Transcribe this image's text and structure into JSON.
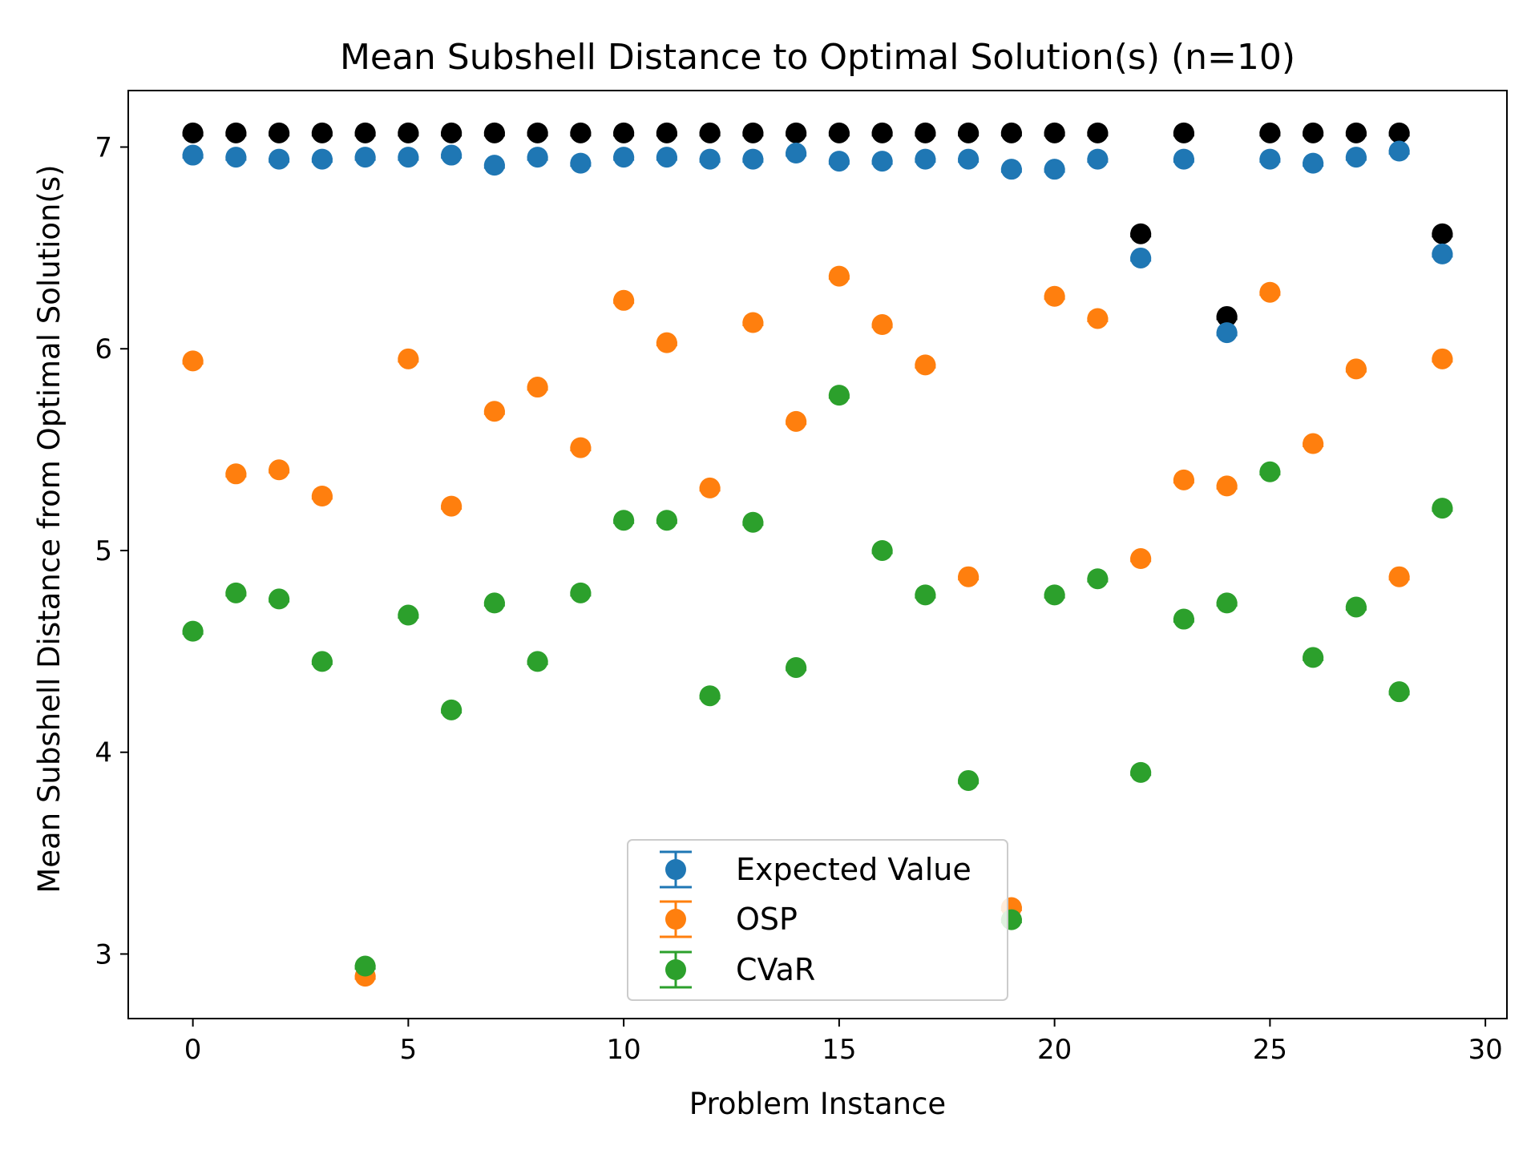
{
  "chart_data": {
    "type": "scatter",
    "title": "Mean Subshell Distance to Optimal Solution(s) (n=10)",
    "xlabel": "Problem Instance",
    "ylabel": "Mean Subshell Distance from Optimal Solution(s)",
    "xlim": [
      -1.5,
      30.5
    ],
    "ylim": [
      2.68,
      7.28
    ],
    "x_ticks": [
      0,
      5,
      10,
      15,
      20,
      25,
      30
    ],
    "y_ticks": [
      3,
      4,
      5,
      6,
      7
    ],
    "grid": false,
    "legend_position": "lower center",
    "x": [
      0,
      1,
      2,
      3,
      4,
      5,
      6,
      7,
      8,
      9,
      10,
      11,
      12,
      13,
      14,
      15,
      16,
      17,
      18,
      19,
      20,
      21,
      22,
      23,
      24,
      25,
      26,
      27,
      28,
      29
    ],
    "reference": {
      "color": "#000000",
      "values": [
        7.07,
        7.07,
        7.07,
        7.07,
        7.07,
        7.07,
        7.07,
        7.07,
        7.07,
        7.07,
        7.07,
        7.07,
        7.07,
        7.07,
        7.07,
        7.07,
        7.07,
        7.07,
        7.07,
        7.07,
        7.07,
        7.07,
        6.57,
        7.07,
        6.16,
        7.07,
        7.07,
        7.07,
        7.07,
        6.57
      ]
    },
    "series": [
      {
        "name": "Expected Value",
        "color": "#1f77b4",
        "values": [
          6.96,
          6.95,
          6.94,
          6.94,
          6.95,
          6.95,
          6.96,
          6.91,
          6.95,
          6.92,
          6.95,
          6.95,
          6.94,
          6.94,
          6.97,
          6.93,
          6.93,
          6.94,
          6.94,
          6.89,
          6.89,
          6.94,
          6.45,
          6.94,
          6.08,
          6.94,
          6.92,
          6.95,
          6.98,
          6.47
        ]
      },
      {
        "name": "OSP",
        "color": "#ff7f0e",
        "values": [
          5.94,
          5.38,
          5.4,
          5.27,
          2.89,
          5.95,
          5.22,
          5.69,
          5.81,
          5.51,
          6.24,
          6.03,
          5.31,
          6.13,
          5.64,
          6.36,
          6.12,
          5.92,
          4.87,
          3.23,
          6.26,
          6.15,
          4.96,
          5.35,
          5.32,
          6.28,
          5.53,
          5.9,
          4.87,
          5.95
        ]
      },
      {
        "name": "CVaR",
        "color": "#2ca02c",
        "values": [
          4.6,
          4.79,
          4.76,
          4.45,
          2.94,
          4.68,
          4.21,
          4.74,
          4.45,
          4.79,
          5.15,
          5.15,
          4.28,
          5.14,
          4.42,
          5.77,
          5.0,
          4.78,
          3.86,
          3.17,
          4.78,
          4.86,
          3.9,
          4.66,
          4.74,
          5.39,
          4.47,
          4.72,
          4.3,
          5.21
        ]
      }
    ]
  }
}
